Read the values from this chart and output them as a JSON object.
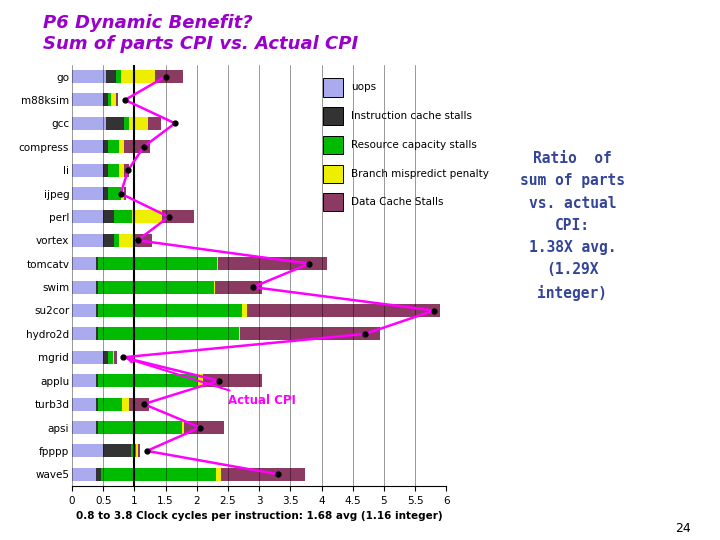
{
  "title_line1": "P6 Dynamic Benefit?",
  "title_line2": "Sum of parts CPI vs. Actual CPI",
  "title_color": "#9900CC",
  "benchmarks": [
    "go",
    "m88ksim",
    "gcc",
    "compress",
    "li",
    "ijpeg",
    "perl",
    "vortex",
    "tomcatv",
    "swim",
    "su2cor",
    "hydro2d",
    "mgrid",
    "applu",
    "turb3d",
    "apsi",
    "fpppp",
    "wave5"
  ],
  "uops": [
    0.55,
    0.5,
    0.55,
    0.5,
    0.5,
    0.5,
    0.5,
    0.5,
    0.38,
    0.38,
    0.38,
    0.38,
    0.5,
    0.38,
    0.38,
    0.38,
    0.5,
    0.38
  ],
  "icache": [
    0.15,
    0.08,
    0.28,
    0.07,
    0.07,
    0.07,
    0.18,
    0.18,
    0.04,
    0.04,
    0.04,
    0.04,
    0.08,
    0.04,
    0.04,
    0.04,
    0.45,
    0.08
  ],
  "resource": [
    0.08,
    0.04,
    0.08,
    0.18,
    0.18,
    0.22,
    0.28,
    0.08,
    1.9,
    1.85,
    2.3,
    2.25,
    0.08,
    1.6,
    0.38,
    1.35,
    0.08,
    1.85
  ],
  "branch": [
    0.55,
    0.08,
    0.3,
    0.08,
    0.08,
    0.04,
    0.48,
    0.22,
    0.02,
    0.02,
    0.08,
    0.02,
    0.02,
    0.08,
    0.12,
    0.02,
    0.02,
    0.08
  ],
  "dcache": [
    0.45,
    0.04,
    0.22,
    0.42,
    0.08,
    0.04,
    0.52,
    0.3,
    1.75,
    0.75,
    3.1,
    2.25,
    0.04,
    0.95,
    0.32,
    0.65,
    0.04,
    1.35
  ],
  "actual_cpi": [
    1.5,
    0.85,
    1.65,
    1.15,
    0.9,
    0.78,
    1.55,
    1.05,
    3.8,
    2.9,
    5.8,
    4.7,
    0.82,
    2.35,
    1.15,
    2.05,
    1.2,
    3.3
  ],
  "color_uops": "#AAAAEE",
  "color_icache": "#333333",
  "color_resource": "#00BB00",
  "color_branch": "#EEEE00",
  "color_dcache": "#8B3A62",
  "xlim": [
    0,
    6
  ],
  "xticks": [
    0,
    0.5,
    1,
    1.5,
    2,
    2.5,
    3,
    3.5,
    4,
    4.5,
    5,
    5.5,
    6
  ],
  "xlabel": "0.8 to 3.8 Clock cycles per instruction: 1.68 avg (1.16 integer)",
  "ratio_text": "Ratio  of\nsum of parts\nvs. actual\nCPI:\n1.38X avg.\n(1.29X\ninteger)",
  "ratio_color": "#334499",
  "actual_cpi_label": "Actual CPI",
  "page_number": "24",
  "bar_height": 0.55,
  "legend_items": [
    [
      "#AAAAEE",
      "uops"
    ],
    [
      "#333333",
      "Instruction cache stalls"
    ],
    [
      "#00BB00",
      "Resource capacity stalls"
    ],
    [
      "#EEEE00",
      "Branch mispredict penalty"
    ],
    [
      "#8B3A62",
      "Data Cache Stalls"
    ]
  ]
}
